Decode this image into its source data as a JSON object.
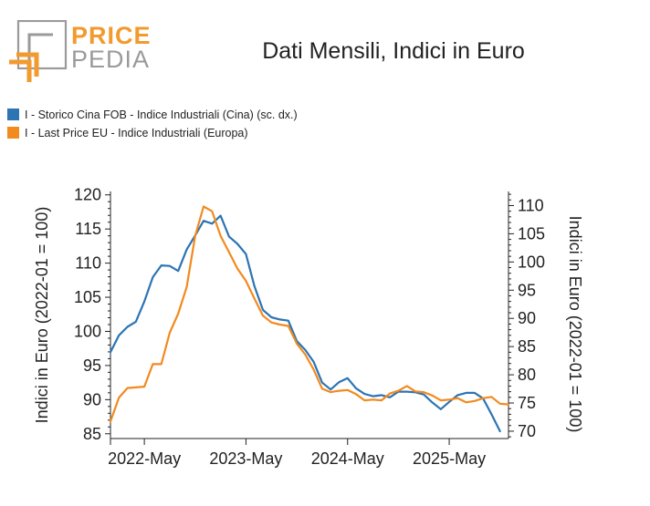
{
  "brand": {
    "line1": "PRICE",
    "line2": "PEDIA"
  },
  "colors": {
    "series_china": "#2c74b4",
    "series_eu": "#f28a1e",
    "logo_orange": "#f29a2e",
    "logo_gray": "#9a9a9a"
  },
  "chart_data": {
    "type": "line",
    "title": "Dati Mensili, Indici in Euro",
    "ylabel_left": "Indici in Euro (2022-01 = 100)",
    "ylabel_right": "Indici in Euro (2022-01 = 100)",
    "x_tick_labels": [
      "2022-May",
      "2023-May",
      "2024-May",
      "2025-May"
    ],
    "x_tick_months": [
      4,
      16,
      28,
      40
    ],
    "x_range_months": [
      0,
      47
    ],
    "y_left": {
      "range": [
        84.3,
        120.5
      ],
      "ticks": [
        85,
        90,
        95,
        100,
        105,
        110,
        115,
        120
      ]
    },
    "y_right": {
      "range": [
        68.7,
        112.5
      ],
      "ticks": [
        70,
        75,
        80,
        85,
        90,
        95,
        100,
        105,
        110
      ]
    },
    "series": [
      {
        "name": "I - Storico Cina FOB - Indice Industriali (Cina) (sc. dx.)",
        "axis": "right",
        "start_month": 0,
        "values": [
          84,
          87,
          88.5,
          89.4,
          93,
          97.3,
          99.4,
          99.3,
          98.4,
          102.2,
          104.7,
          107.3,
          106.8,
          108.2,
          104.5,
          103.2,
          101.4,
          95.7,
          91.5,
          90.2,
          89.8,
          89.6,
          86,
          84.4,
          82.3,
          78.6,
          77.4,
          78.7,
          79.4,
          77.6,
          76.6,
          76.2,
          76.4,
          76,
          77,
          77,
          76.9,
          76.5,
          75.1,
          73.9,
          75.2,
          76.4,
          76.8,
          76.8,
          75.8,
          73,
          70
        ]
      },
      {
        "name": "I - Last Price EU - Indice Industriali (Europa)",
        "axis": "left",
        "start_month": 0,
        "values": [
          86.8,
          90.3,
          91.7,
          91.8,
          91.9,
          95.2,
          95.2,
          99.8,
          102.6,
          106.5,
          114,
          118.3,
          117.6,
          114,
          111.6,
          109.2,
          107.4,
          104.8,
          102.3,
          101.3,
          101,
          100.8,
          98.2,
          96.6,
          94.4,
          91.6,
          91.1,
          91.3,
          91.4,
          90.8,
          89.9,
          90,
          89.9,
          90.9,
          91.3,
          92,
          91.2,
          91.1,
          90.6,
          89.9,
          90,
          90.2,
          89.6,
          89.8,
          90.2,
          90.4,
          89.4,
          89.3
        ]
      }
    ]
  }
}
